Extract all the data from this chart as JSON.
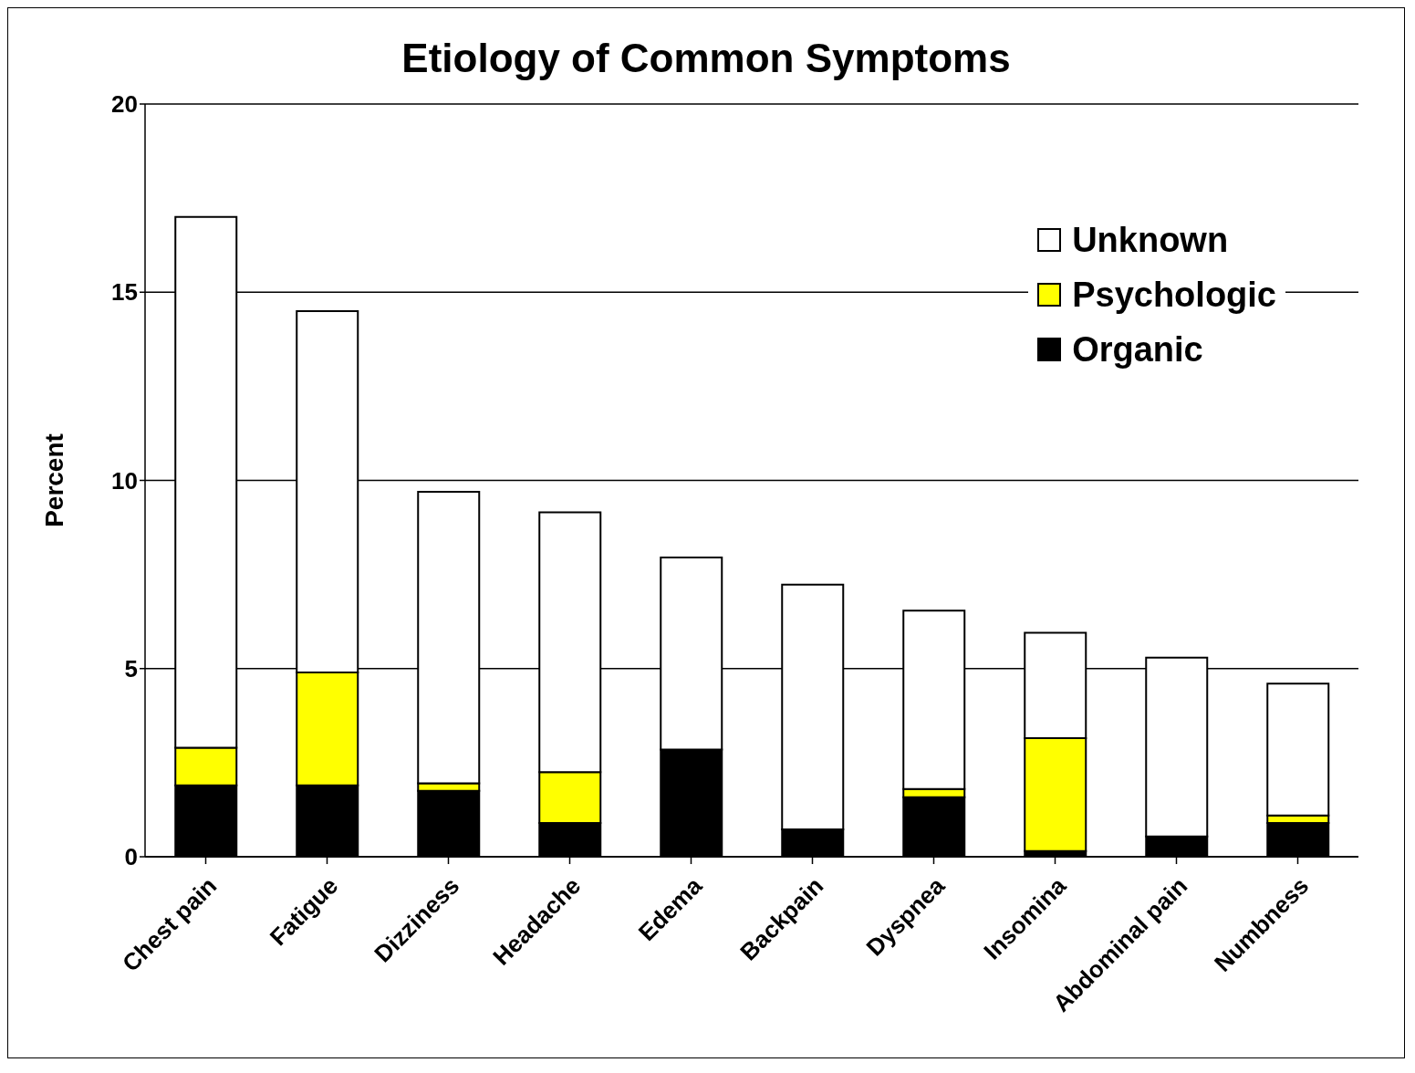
{
  "chart_data": {
    "type": "bar",
    "title": "Etiology of Common Symptoms",
    "ylabel": "Percent",
    "categories": [
      "Chest pain",
      "Fatigue",
      "Dizziness",
      "Headache",
      "Edema",
      "Backpain",
      "Dyspnea",
      "Insomina",
      "Abdominal pain",
      "Numbness"
    ],
    "series": [
      {
        "name": "Organic",
        "color": "#000000",
        "values": [
          1.9,
          1.9,
          1.75,
          0.9,
          2.85,
          0.73,
          1.58,
          0.15,
          0.54,
          0.9
        ]
      },
      {
        "name": "Psychologic",
        "color": "#ffff00",
        "values": [
          1.0,
          3.0,
          0.2,
          1.35,
          null,
          null,
          0.22,
          3.0,
          null,
          0.2
        ]
      },
      {
        "name": "Unknown",
        "color": "#ffffff",
        "values": [
          14.1,
          9.6,
          7.75,
          6.9,
          5.1,
          6.5,
          4.74,
          2.8,
          4.75,
          3.5
        ]
      }
    ],
    "stacked": true,
    "ylim": [
      0,
      20
    ],
    "yticks": [
      0,
      5,
      10,
      15,
      20
    ],
    "grid": "y",
    "legend": "top right"
  }
}
